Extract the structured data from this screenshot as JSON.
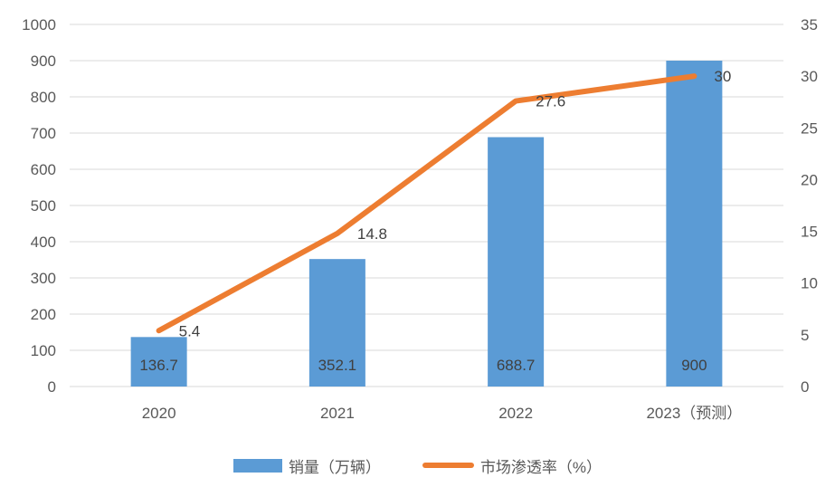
{
  "colors": {
    "background": "#FFFFFF",
    "bar": "#5B9BD5",
    "line": "#ED7D31",
    "gridline": "#D9D9D9",
    "axis_text": "#595959",
    "data_label_text": "#404040"
  },
  "chart_data": {
    "type": "combo_bar_line",
    "title": "",
    "categories": [
      "2020",
      "2021",
      "2022",
      "2023（预测）"
    ],
    "series": [
      {
        "name": "销量（万辆）",
        "type": "bar",
        "axis": "left",
        "values": [
          136.7,
          352.1,
          688.7,
          900
        ],
        "labels": [
          "136.7",
          "352.1",
          "688.7",
          "900"
        ],
        "color": "#5B9BD5"
      },
      {
        "name": "市场渗透率（%）",
        "type": "line",
        "axis": "right",
        "values": [
          5.4,
          14.8,
          27.6,
          30
        ],
        "labels": [
          "5.4",
          "14.8",
          "27.6",
          "30"
        ],
        "color": "#ED7D31"
      }
    ],
    "left_axis": {
      "min": 0,
      "max": 1000,
      "step": 100,
      "tick_labels": [
        "0",
        "100",
        "200",
        "300",
        "400",
        "500",
        "600",
        "700",
        "800",
        "900",
        "1000"
      ]
    },
    "right_axis": {
      "min": 0,
      "max": 35,
      "step": 5,
      "tick_labels": [
        "0",
        "5",
        "10",
        "15",
        "20",
        "25",
        "30",
        "35"
      ]
    },
    "grid": true,
    "legend_position": "bottom"
  }
}
